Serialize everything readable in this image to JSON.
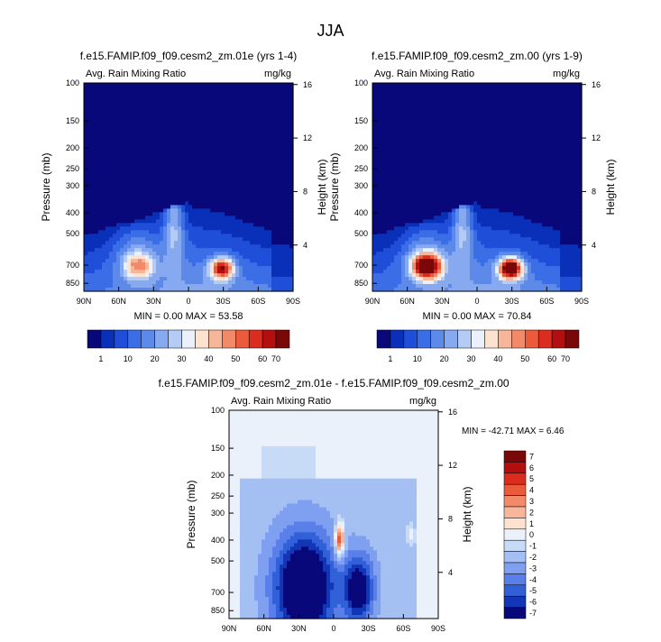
{
  "title": "JJA",
  "panels": [
    {
      "id": "top-left",
      "title": "f.e15.FAMIP.f09_f09.cesm2_zm.01e (yrs 1-4)",
      "left_label": "Avg. Rain Mixing Ratio",
      "right_label": "mg/kg",
      "y_label": "Pressure (mb)",
      "y2_label": "Height (km)",
      "stats": "MIN =  0.00   MAX = 53.58"
    },
    {
      "id": "top-right",
      "title": "f.e15.FAMIP.f09_f09.cesm2_zm.00 (yrs 1-9)",
      "left_label": "Avg. Rain Mixing Ratio",
      "right_label": "mg/kg",
      "y_label": "Pressure (mb)",
      "y2_label": "Height (km)",
      "stats": "MIN =  0.00   MAX = 70.84"
    },
    {
      "id": "bottom-diff",
      "title": "f.e15.FAMIP.f09_f09.cesm2_zm.01e - f.e15.FAMIP.f09_f09.cesm2_zm.00",
      "left_label": "Avg. Rain Mixing Ratio",
      "right_label": "mg/kg",
      "y_label": "Pressure (mb)",
      "y2_label": "Height (km)",
      "stats": "MIN = -42.71   MAX =  6.46"
    }
  ],
  "chart_data": [
    {
      "type": "heatmap",
      "panel": "top-left",
      "x_ticks": [
        "90N",
        "60N",
        "30N",
        "0",
        "30S",
        "60S",
        "90S"
      ],
      "x_values": [
        90,
        60,
        30,
        0,
        -30,
        -60,
        -90
      ],
      "y_ticks": [
        "100",
        "150",
        "200",
        "250",
        "300",
        "400",
        "500",
        "700",
        "850"
      ],
      "y_values": [
        100,
        150,
        200,
        250,
        300,
        400,
        500,
        700,
        850
      ],
      "ylim": [
        100,
        925
      ],
      "y2_ticks": [
        "16",
        "12",
        "8",
        "4"
      ],
      "y2_values": [
        16,
        12,
        8,
        4
      ],
      "min": 0.0,
      "max": 53.58,
      "colorbar_ticks": [
        "1",
        "10",
        "20",
        "30",
        "40",
        "50",
        "60",
        "70"
      ]
    },
    {
      "type": "heatmap",
      "panel": "top-right",
      "x_ticks": [
        "90N",
        "60N",
        "30N",
        "0",
        "30S",
        "60S",
        "90S"
      ],
      "x_values": [
        90,
        60,
        30,
        0,
        -30,
        -60,
        -90
      ],
      "y_ticks": [
        "100",
        "150",
        "200",
        "250",
        "300",
        "400",
        "500",
        "700",
        "850"
      ],
      "y_values": [
        100,
        150,
        200,
        250,
        300,
        400,
        500,
        700,
        850
      ],
      "ylim": [
        100,
        925
      ],
      "y2_ticks": [
        "16",
        "12",
        "8",
        "4"
      ],
      "y2_values": [
        16,
        12,
        8,
        4
      ],
      "min": 0.0,
      "max": 70.84,
      "colorbar_ticks": [
        "1",
        "10",
        "20",
        "30",
        "40",
        "50",
        "60",
        "70"
      ]
    },
    {
      "type": "heatmap",
      "panel": "bottom-diff",
      "x_ticks": [
        "90N",
        "60N",
        "30N",
        "0",
        "30S",
        "60S",
        "90S"
      ],
      "x_values": [
        90,
        60,
        30,
        0,
        -30,
        -60,
        -90
      ],
      "y_ticks": [
        "100",
        "150",
        "200",
        "250",
        "300",
        "400",
        "500",
        "700",
        "850"
      ],
      "y_values": [
        100,
        150,
        200,
        250,
        300,
        400,
        500,
        700,
        850
      ],
      "ylim": [
        100,
        925
      ],
      "y2_ticks": [
        "16",
        "12",
        "8",
        "4"
      ],
      "y2_values": [
        16,
        12,
        8,
        4
      ],
      "min": -42.71,
      "max": 6.46,
      "colorbar_ticks": [
        "7",
        "6",
        "5",
        "4",
        "3",
        "2",
        "1",
        "0",
        "-1",
        "-2",
        "-3",
        "-4",
        "-5",
        "-6",
        "-7"
      ]
    }
  ],
  "colors": {
    "abs_scale": [
      "#08087a",
      "#0a2fb8",
      "#1f4fd9",
      "#3b6ee6",
      "#5d8ae8",
      "#86a9ef",
      "#b4cbf5",
      "#eaf1fb",
      "#fde3cf",
      "#f7b599",
      "#f28a6a",
      "#ec5a3c",
      "#db2d1f",
      "#b30f10",
      "#7a0808"
    ],
    "diff_scale": [
      "#7a0808",
      "#b30f10",
      "#db2d1f",
      "#ec5a3c",
      "#f28a6a",
      "#f7b599",
      "#fde3cf",
      "#eaf1fb",
      "#c8dbf6",
      "#a4c0f2",
      "#7f9ff0",
      "#5a7fe8",
      "#3160d8",
      "#1236b6",
      "#08087a"
    ]
  }
}
